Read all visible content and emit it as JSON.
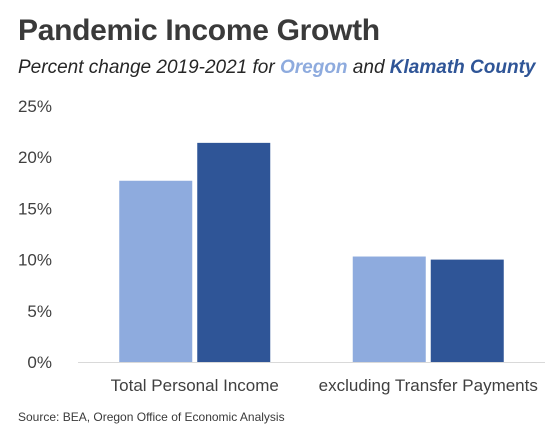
{
  "title": "Pandemic Income Growth",
  "subtitle": {
    "prefix": "Percent change 2019-2021 for ",
    "oregon": "Oregon",
    "and": " and ",
    "klamath": "Klamath County"
  },
  "source": "Source: BEA, Oregon Office of Economic Analysis",
  "colors": {
    "oregon": "#8eabde",
    "klamath": "#2f5597"
  },
  "chart_data": {
    "type": "bar",
    "categories": [
      "Total Personal Income",
      "excluding Transfer Payments"
    ],
    "series": [
      {
        "name": "Oregon",
        "values": [
          17.7,
          10.3
        ]
      },
      {
        "name": "Klamath County",
        "values": [
          21.4,
          10.0
        ]
      }
    ],
    "yticks": [
      "0%",
      "5%",
      "10%",
      "15%",
      "20%",
      "25%"
    ],
    "ylim": [
      0,
      25
    ],
    "grid": false,
    "legend": "none"
  }
}
